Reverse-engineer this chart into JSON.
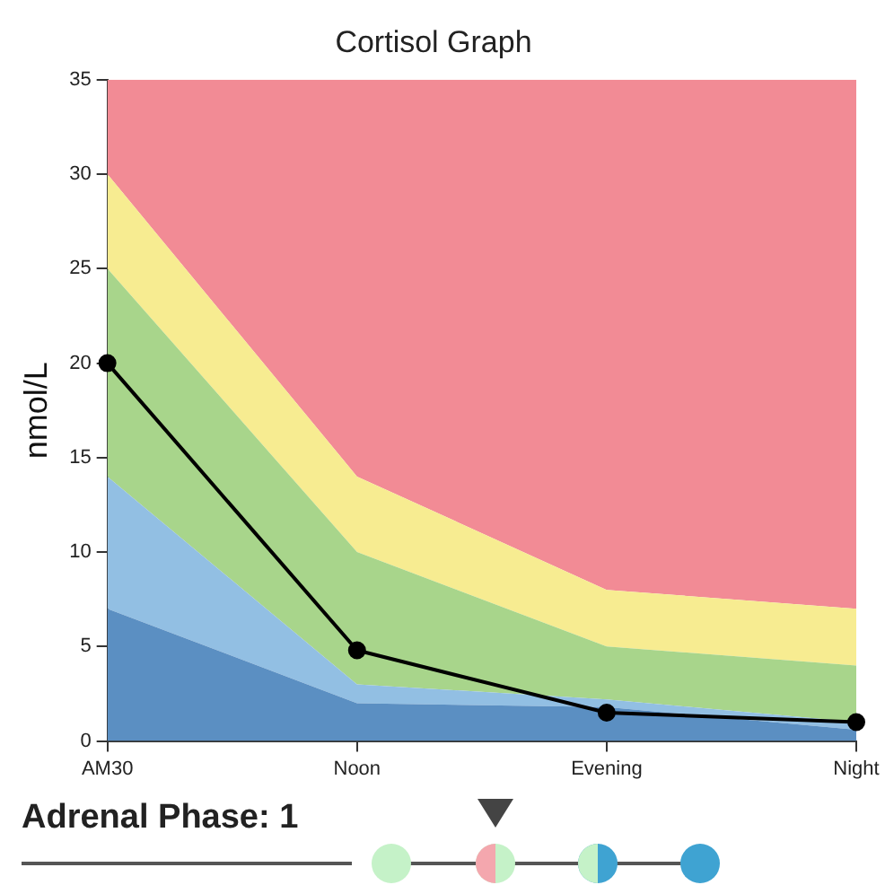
{
  "chart_data": {
    "type": "area",
    "title": "Cortisol Graph",
    "ylabel": "nmol/L",
    "stacked": true,
    "categories": [
      "AM30",
      "Noon",
      "Evening",
      "Night"
    ],
    "series": [
      {
        "color": "#5b8fc2",
        "values": [
          7,
          2,
          1.8,
          0.6
        ]
      },
      {
        "color": "#92bfe3",
        "values": [
          7,
          1,
          0.4,
          0.4
        ]
      },
      {
        "color": "#a8d58b",
        "values": [
          11,
          7,
          2.8,
          3
        ]
      },
      {
        "color": "#f7ec91",
        "values": [
          5,
          4,
          3,
          3
        ]
      },
      {
        "color": "#f28b95",
        "values": [
          5,
          21,
          27,
          28
        ]
      },
      {
        "type": "line",
        "color": "#000000",
        "values": [
          20,
          4.8,
          1.5,
          1
        ],
        "marker": "circle"
      }
    ],
    "ylim": [
      0,
      35
    ],
    "yticks": [
      0,
      5,
      10,
      15,
      20,
      25,
      30,
      35
    ],
    "annotations": [
      "Adrenal Phase: 1"
    ]
  }
}
